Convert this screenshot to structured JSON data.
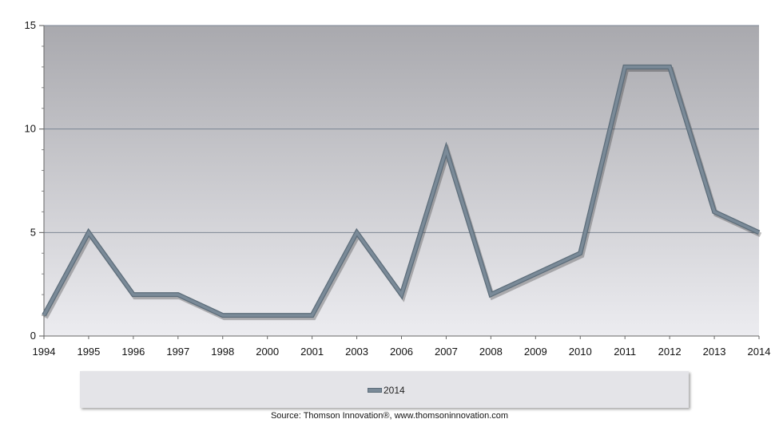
{
  "chart_data": {
    "type": "line",
    "categories": [
      "1994",
      "1995",
      "1996",
      "1997",
      "1998",
      "2000",
      "2001",
      "2003",
      "2006",
      "2007",
      "2008",
      "2009",
      "2010",
      "2011",
      "2012",
      "2013",
      "2014"
    ],
    "series": [
      {
        "name": "2014",
        "values": [
          1,
          5,
          2,
          2,
          1,
          1,
          1,
          5,
          2,
          9,
          2,
          3,
          4,
          13,
          13,
          6,
          5
        ]
      }
    ],
    "ylim": [
      0,
      15
    ],
    "yticks": [
      0,
      5,
      10,
      15
    ],
    "grid": true,
    "legend_position": "bottom",
    "title": "",
    "xlabel": "",
    "ylabel": "",
    "colors": {
      "line": "#7a8a98",
      "line_edge": "#5d6d7a",
      "plot_top": "#a9a9ae",
      "plot_bottom": "#ececf0",
      "gridline": "#7c8694"
    }
  },
  "source": "Source: Thomson Innovation®, www.thomsoninnovation.com"
}
